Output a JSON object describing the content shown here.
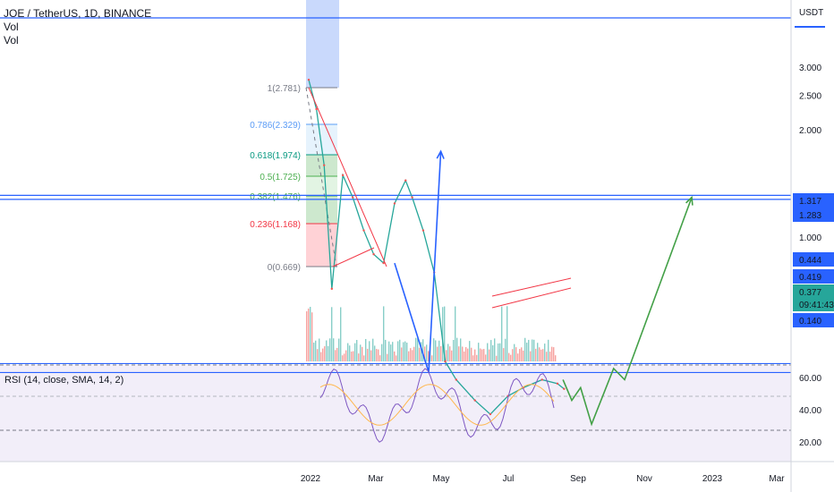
{
  "header": {
    "symbol": "JOE / TetherUS, 1D, BINANCE",
    "indicator1": "Vol",
    "indicator2": "Vol"
  },
  "rsi": {
    "label": "RSI (14, close, SMA, 14, 2)",
    "ticks": [
      "60.00",
      "40.00",
      "20.00"
    ]
  },
  "price_axis": {
    "currency": "USDT",
    "ticks": [
      "3.000",
      "2.500",
      "2.000",
      "1.000"
    ],
    "badges": [
      {
        "text": "1.317",
        "color": "#2962ff"
      },
      {
        "text": "1.283",
        "color": "#2962ff"
      },
      {
        "text": "0.444",
        "color": "#2962ff"
      },
      {
        "text": "0.419",
        "color": "#2962ff"
      },
      {
        "text": "0.377",
        "color": "#26a69a"
      },
      {
        "text": "09:41:43",
        "color": "#26a69a"
      },
      {
        "text": "0.140",
        "color": "#2962ff"
      }
    ]
  },
  "time_axis": {
    "labels": [
      "2022",
      "Mar",
      "May",
      "Jul",
      "Sep",
      "Nov",
      "2023",
      "Mar"
    ]
  },
  "fib_levels": [
    {
      "label": "1(2.781)",
      "color": "#787b86"
    },
    {
      "label": "0.786(2.329)",
      "color": "#5b9cf6"
    },
    {
      "label": "0.618(1.974)",
      "color": "#089981"
    },
    {
      "label": "0.5(1.725)",
      "color": "#4caf50"
    },
    {
      "label": "0.382(1.476)",
      "color": "#4caf50"
    },
    {
      "label": "0.236(1.168)",
      "color": "#f23645"
    },
    {
      "label": "0(0.669)",
      "color": "#787b86"
    }
  ],
  "chart_data": {
    "type": "line",
    "title": "JOE / TetherUS, 1D, BINANCE",
    "y_scale": "log",
    "horizontal_levels": [
      1.317,
      1.283,
      0.444,
      0.419,
      0.14
    ],
    "last_price": 0.377,
    "series": [
      {
        "name": "JOE / TetherUS",
        "x": [
          "2022-01-01",
          "2022-01-08",
          "2022-01-15",
          "2022-01-22",
          "2022-02-01",
          "2022-02-10",
          "2022-02-20",
          "2022-03-01",
          "2022-03-10",
          "2022-03-20",
          "2022-03-30",
          "2022-04-05",
          "2022-04-15",
          "2022-04-25",
          "2022-05-05",
          "2022-05-15",
          "2022-06-01",
          "2022-06-15",
          "2022-07-01",
          "2022-07-15",
          "2022-08-01",
          "2022-08-15",
          "2022-08-21"
        ],
        "values": [
          2.78,
          2.3,
          1.6,
          0.72,
          1.5,
          1.3,
          1.05,
          0.9,
          0.85,
          1.25,
          1.45,
          1.3,
          1.05,
          0.8,
          0.45,
          0.4,
          0.35,
          0.32,
          0.36,
          0.38,
          0.4,
          0.39,
          0.377
        ]
      }
    ],
    "annotations": [
      {
        "type": "projection-blue",
        "points": [
          [
            "2022-03-20",
            0.85
          ],
          [
            "2022-04-20",
            0.42
          ],
          [
            "2022-05-01",
            1.75
          ]
        ]
      },
      {
        "type": "projection-green",
        "points": [
          [
            "2022-08-20",
            0.4
          ],
          [
            "2022-08-28",
            0.35
          ],
          [
            "2022-09-05",
            0.38
          ],
          [
            "2022-09-15",
            0.3
          ],
          [
            "2022-10-05",
            0.43
          ],
          [
            "2022-10-15",
            0.4
          ],
          [
            "2022-12-15",
            1.3
          ]
        ]
      }
    ]
  }
}
